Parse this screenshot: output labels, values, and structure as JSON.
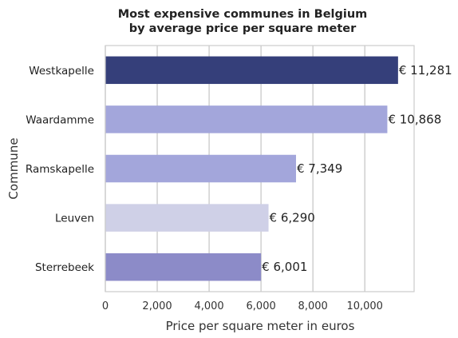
{
  "chart_data": {
    "type": "bar",
    "orientation": "horizontal",
    "title_lines": [
      "Most expensive communes in Belgium",
      "by average price per square meter"
    ],
    "xlabel": "Price  per square meter in euros",
    "ylabel": "Commune",
    "xlim": [
      0,
      11900
    ],
    "xticks": [
      0,
      2000,
      4000,
      6000,
      8000,
      10000
    ],
    "xtick_labels": [
      "0",
      "2,000",
      "4,000",
      "6,000",
      "8,000",
      "10,000"
    ],
    "grid": "vertical",
    "categories": [
      "Westkapelle",
      "Waardamme",
      "Ramskapelle",
      "Leuven",
      "Sterrebeek"
    ],
    "values": [
      11281,
      10868,
      7349,
      6290,
      6001
    ],
    "value_labels": [
      "€ 11,281",
      "€ 10,868",
      "€ 7,349",
      "€ 6,290",
      "€ 6,001"
    ],
    "colors": [
      "#353f7a",
      "#a3a6db",
      "#a3a6db",
      "#cfd0e7",
      "#8c8bc8"
    ]
  }
}
